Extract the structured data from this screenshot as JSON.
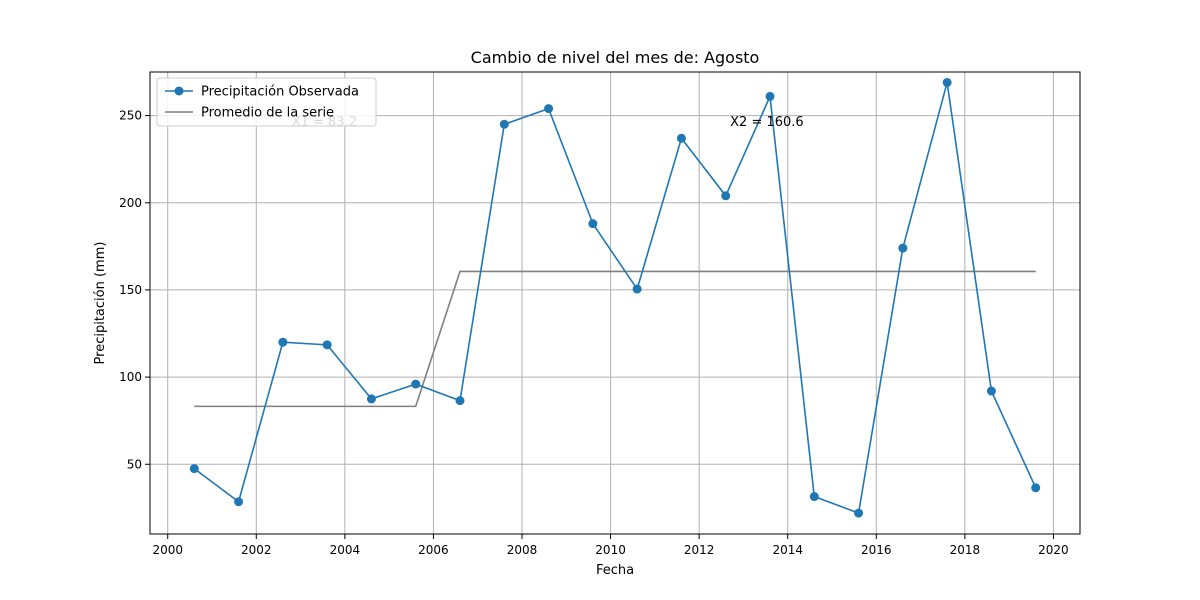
{
  "chart_data": {
    "type": "line",
    "title": "Cambio de nivel del mes de: Agosto",
    "xlabel": "Fecha",
    "ylabel": "Precipitación (mm)",
    "xlim": [
      1999.6,
      2020.6
    ],
    "ylim": [
      10,
      275
    ],
    "x_ticks": [
      2000,
      2002,
      2004,
      2006,
      2008,
      2010,
      2012,
      2014,
      2016,
      2018,
      2020
    ],
    "y_ticks": [
      50,
      100,
      150,
      200,
      250
    ],
    "grid": true,
    "legend_position": "upper-left",
    "series": [
      {
        "name": "Precipitación Observada",
        "color": "#1f77b4",
        "marker": "circle",
        "x": [
          2000.6,
          2001.6,
          2002.6,
          2003.6,
          2004.6,
          2005.6,
          2006.6,
          2007.6,
          2008.6,
          2009.6,
          2010.6,
          2011.6,
          2012.6,
          2013.6,
          2014.6,
          2015.6,
          2016.6,
          2017.6,
          2018.6,
          2019.6
        ],
        "y": [
          47.5,
          28.5,
          120,
          118.5,
          87.5,
          96,
          86.5,
          245,
          254,
          188,
          150.5,
          237,
          204,
          261,
          31.5,
          22,
          174,
          269,
          92,
          36.5
        ]
      },
      {
        "name": "Promedio de la serie",
        "color": "#808080",
        "marker": "none",
        "x": [
          2000.6,
          2005.6,
          2006.6,
          2019.6
        ],
        "y": [
          83.2,
          83.2,
          160.6,
          160.6
        ]
      }
    ],
    "annotations": [
      {
        "text": "X1 = 83.2",
        "x": 2002.8,
        "y": 244
      },
      {
        "text": "X2 = 160.6",
        "x": 2012.7,
        "y": 244
      }
    ]
  }
}
